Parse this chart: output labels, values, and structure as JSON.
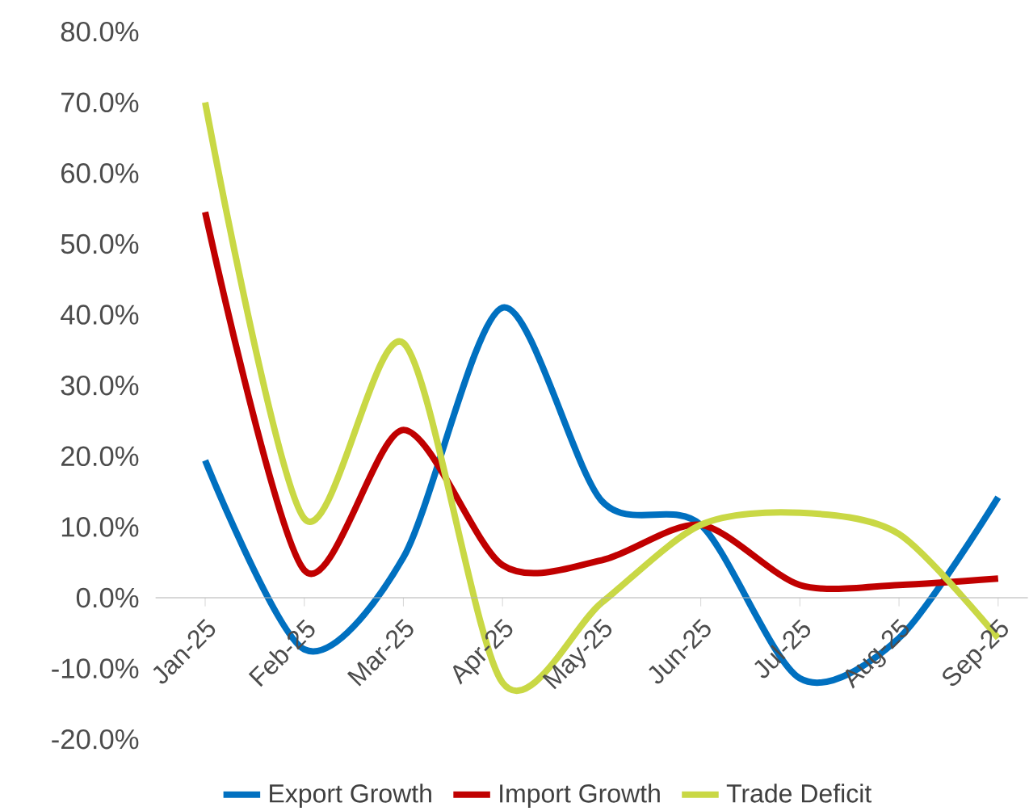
{
  "chart_data": {
    "type": "line",
    "categories": [
      "Jan-25",
      "Feb-25",
      "Mar-25",
      "Apr-25",
      "May-25",
      "Jun-25",
      "Jul-25",
      "Aug-25",
      "Sep-25"
    ],
    "series": [
      {
        "name": "Export Growth",
        "color": "#0070c0",
        "values": [
          19.4,
          -7.3,
          5.7,
          41.0,
          13.7,
          10.3,
          -11.4,
          -5.7,
          14.2
        ]
      },
      {
        "name": "Import Growth",
        "color": "#c00000",
        "values": [
          54.5,
          3.9,
          23.7,
          4.6,
          5.3,
          10.3,
          1.8,
          1.8,
          2.7
        ]
      },
      {
        "name": "Trade Deficit",
        "color": "#c9d845",
        "values": [
          70.0,
          11.2,
          36.0,
          -12.0,
          -0.7,
          10.3,
          12.0,
          9.0,
          -5.7
        ]
      }
    ],
    "ylim": [
      -20,
      80
    ],
    "yticks": [
      {
        "value": -20,
        "label": "-20.0%"
      },
      {
        "value": -10,
        "label": "-10.0%"
      },
      {
        "value": 0,
        "label": "0.0%"
      },
      {
        "value": 10,
        "label": "10.0%"
      },
      {
        "value": 20,
        "label": "20.0%"
      },
      {
        "value": 30,
        "label": "30.0%"
      },
      {
        "value": 40,
        "label": "40.0%"
      },
      {
        "value": 50,
        "label": "50.0%"
      },
      {
        "value": 60,
        "label": "60.0%"
      },
      {
        "value": 70,
        "label": "70.0%"
      },
      {
        "value": 80,
        "label": "80.0%"
      }
    ],
    "legend": "bottom",
    "grid": false,
    "marker": "none",
    "line_style": "solid"
  }
}
